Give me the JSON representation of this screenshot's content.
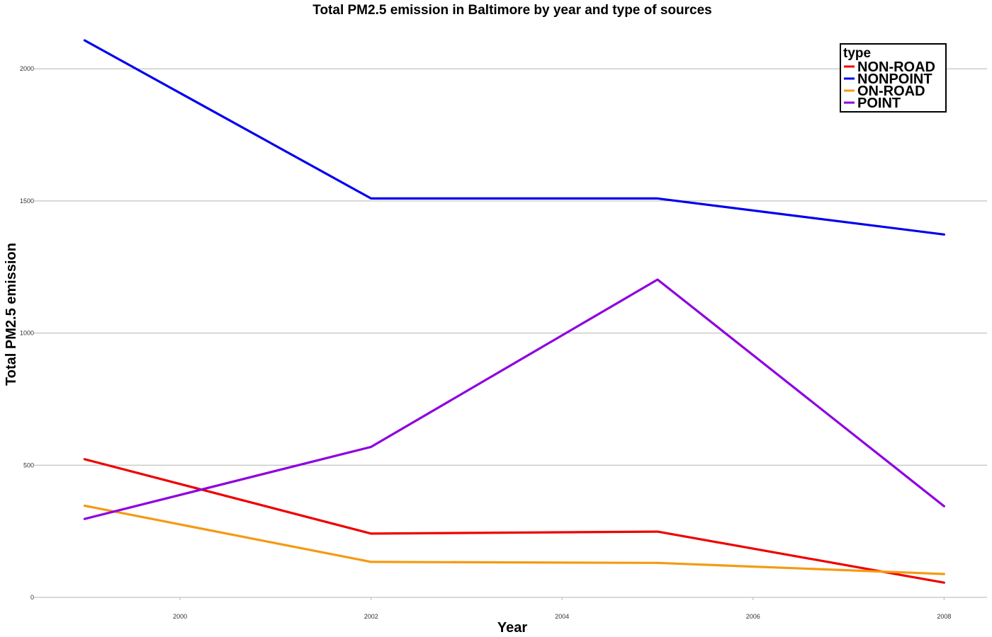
{
  "chart_data": {
    "type": "line",
    "title": "Total PM2.5 emission in Baltimore by year and type of sources",
    "xlabel": "Year",
    "ylabel": "Total PM2.5 emission",
    "x": [
      1999,
      2002,
      2005,
      2008
    ],
    "xlim": [
      1998.5,
      2008.45
    ],
    "ylim": [
      0,
      2180
    ],
    "x_ticks": [
      2000,
      2002,
      2004,
      2006,
      2008
    ],
    "y_ticks": [
      0,
      500,
      1000,
      1500,
      2000
    ],
    "grid": "horizontal",
    "legend": {
      "title": "type",
      "position": "top-right"
    },
    "series": [
      {
        "name": "NON-ROAD",
        "color": "#ee0000",
        "values": [
          522.9,
          241.4,
          248.9,
          55.8
        ]
      },
      {
        "name": "NONPOINT",
        "color": "#0000ee",
        "values": [
          2107.6,
          1509.5,
          1509.5,
          1373.2
        ]
      },
      {
        "name": "ON-ROAD",
        "color": "#f59a12",
        "values": [
          346.8,
          134.3,
          130.4,
          88.3
        ]
      },
      {
        "name": "POINT",
        "color": "#8e00e0",
        "values": [
          296.8,
          569.3,
          1202.5,
          344.98
        ]
      }
    ]
  }
}
